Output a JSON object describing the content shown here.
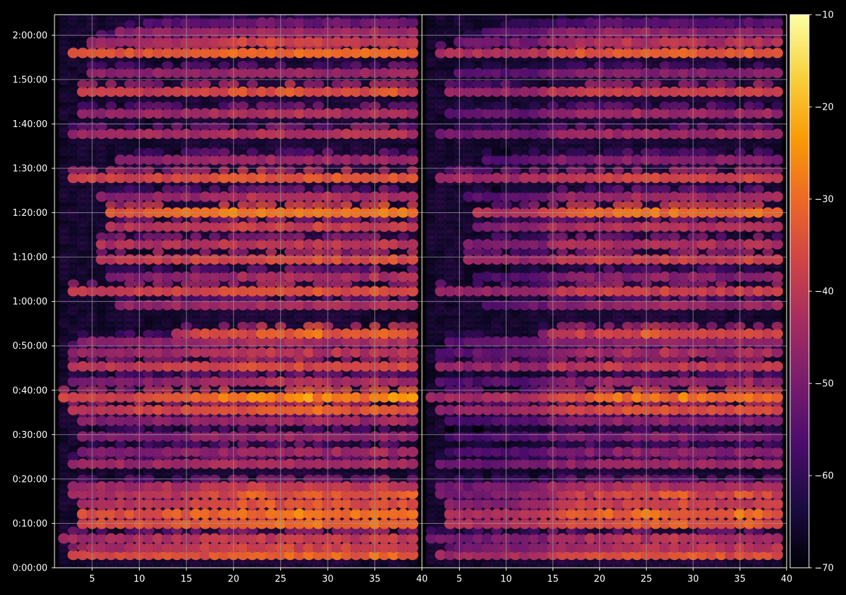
{
  "chart_data": {
    "type": "heatmap",
    "style": {
      "background": "#000000",
      "axis_color": "#ffffff",
      "grid_color": "#9a9a9a",
      "colormap": "inferno",
      "colormap_stops": [
        "#000004",
        "#1b0c41",
        "#4a0c6b",
        "#781c6d",
        "#a52c60",
        "#cf4446",
        "#ed6925",
        "#fb9b06",
        "#f7d13d",
        "#fcffa4"
      ]
    },
    "grid": true,
    "panels": [
      {
        "name": "left",
        "xlim": [
          1,
          40
        ],
        "x_ticks": [
          5,
          10,
          15,
          20,
          25,
          30,
          35,
          40
        ],
        "x_tick_labels": [
          "5",
          "10",
          "15",
          "20",
          "25",
          "30",
          "35",
          "40"
        ]
      },
      {
        "name": "right",
        "xlim": [
          1,
          40
        ],
        "x_ticks": [
          5,
          10,
          15,
          20,
          25,
          30,
          35,
          40
        ],
        "x_tick_labels": [
          "5",
          "10",
          "15",
          "20",
          "25",
          "30",
          "35",
          "40"
        ]
      }
    ],
    "y_axis": {
      "range_seconds": [
        0,
        7477
      ],
      "ticks_seconds": [
        0,
        600,
        1200,
        1800,
        2400,
        3000,
        3600,
        4200,
        4800,
        5400,
        6000,
        6600,
        7200
      ],
      "tick_labels": [
        "0:00:00",
        "0:10:00",
        "0:20:00",
        "0:30:00",
        "0:40:00",
        "0:50:00",
        "1:00:00",
        "1:10:00",
        "1:20:00",
        "1:30:00",
        "1:40:00",
        "1:50:00",
        "2:00:00"
      ]
    },
    "colorbar": {
      "range": [
        -70,
        -10
      ],
      "ticks": [
        -10,
        -20,
        -30,
        -40,
        -50,
        -60,
        -70
      ],
      "tick_labels": [
        "−10",
        "−20",
        "−30",
        "−40",
        "−50",
        "−60",
        "−70"
      ]
    },
    "bands": [
      {
        "t": 174,
        "level": -38,
        "peak": -24,
        "from": 3
      },
      {
        "t": 273,
        "level": -44,
        "peak": -30,
        "from": 5
      },
      {
        "t": 396,
        "level": -44,
        "peak": -34,
        "from": 2
      },
      {
        "t": 593,
        "level": -36,
        "peak": -25,
        "from": 4
      },
      {
        "t": 728,
        "level": -36,
        "peak": -22,
        "from": 4
      },
      {
        "t": 866,
        "level": -42,
        "peak": -27,
        "from": 4
      },
      {
        "t": 1000,
        "level": -44,
        "peak": -22,
        "from": 3
      },
      {
        "t": 1099,
        "level": -45,
        "peak": -33,
        "from": 3
      },
      {
        "t": 1405,
        "level": -46,
        "peak": -38,
        "from": 3
      },
      {
        "t": 1567,
        "level": -50,
        "peak": -40,
        "from": 4
      },
      {
        "t": 1774,
        "level": -50,
        "peak": -42,
        "from": 4
      },
      {
        "t": 1987,
        "level": -49,
        "peak": -41,
        "from": 4
      },
      {
        "t": 2132,
        "level": -40,
        "peak": -25,
        "from": 3
      },
      {
        "t": 2304,
        "level": -38,
        "peak": -15,
        "from": 2
      },
      {
        "t": 2517,
        "level": -50,
        "peak": -36,
        "from": 3
      },
      {
        "t": 2722,
        "level": -40,
        "peak": -32,
        "from": 3
      },
      {
        "t": 2911,
        "level": -47,
        "peak": -35,
        "from": 3
      },
      {
        "t": 3058,
        "level": -48,
        "peak": -38,
        "from": 4
      },
      {
        "t": 3165,
        "level": -44,
        "peak": -20,
        "from": 14
      },
      {
        "t": 3550,
        "level": -48,
        "peak": -38,
        "from": 8
      },
      {
        "t": 3738,
        "level": -40,
        "peak": -30,
        "from": 3
      },
      {
        "t": 3934,
        "level": -50,
        "peak": -38,
        "from": 7
      },
      {
        "t": 4167,
        "level": -40,
        "peak": -31,
        "from": 6
      },
      {
        "t": 4373,
        "level": -43,
        "peak": -36,
        "from": 6
      },
      {
        "t": 4611,
        "level": -42,
        "peak": -35,
        "from": 7
      },
      {
        "t": 4802,
        "level": -35,
        "peak": -20,
        "from": 7
      },
      {
        "t": 5017,
        "level": -48,
        "peak": -36,
        "from": 6
      },
      {
        "t": 5270,
        "level": -38,
        "peak": -30,
        "from": 3
      },
      {
        "t": 5514,
        "level": -48,
        "peak": -42,
        "from": 8
      },
      {
        "t": 5865,
        "level": -45,
        "peak": -38,
        "from": 3
      },
      {
        "t": 6142,
        "level": -47,
        "peak": -38,
        "from": 4
      },
      {
        "t": 6435,
        "level": -40,
        "peak": -30,
        "from": 4
      },
      {
        "t": 6689,
        "level": -48,
        "peak": -42,
        "from": 5
      },
      {
        "t": 6959,
        "level": -35,
        "peak": -25,
        "from": 3
      },
      {
        "t": 7110,
        "level": -46,
        "peak": -30,
        "from": 5
      },
      {
        "t": 7244,
        "level": -48,
        "peak": -40,
        "from": 8
      },
      {
        "t": 7370,
        "level": -56,
        "peak": -48,
        "from": 11
      }
    ]
  }
}
